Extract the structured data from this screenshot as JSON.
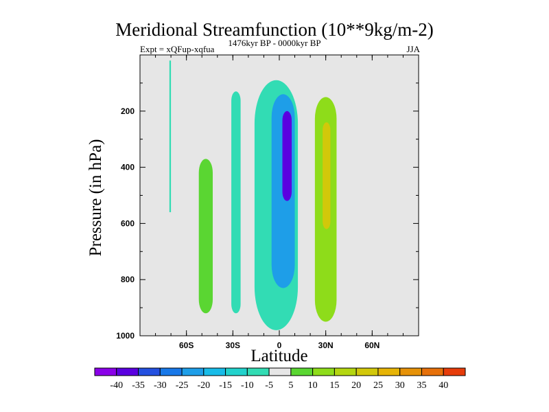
{
  "chart_data": {
    "type": "filled-contour",
    "title": "Meridional Streamfunction (10**9kg/m-2)",
    "subtitle": "1476kyr BP - 0000kyr BP",
    "left_label": "Expt = xQFup-xqfua",
    "right_label": "JJA",
    "xlabel": "Latitude",
    "ylabel": "Pressure (in hPa)",
    "xlim": [
      -90,
      90
    ],
    "ylim": [
      1000,
      0
    ],
    "x_ticks": [
      {
        "value": -60,
        "label": "60S"
      },
      {
        "value": -30,
        "label": "30S"
      },
      {
        "value": 0,
        "label": "0"
      },
      {
        "value": 30,
        "label": "30N"
      },
      {
        "value": 60,
        "label": "60N"
      }
    ],
    "y_ticks": [
      200,
      400,
      600,
      800,
      1000
    ],
    "colorbar": {
      "levels": [
        "-40",
        "-35",
        "-30",
        "-25",
        "-20",
        "-15",
        "-10",
        "-5",
        "5",
        "10",
        "15",
        "20",
        "25",
        "30",
        "35",
        "40"
      ],
      "colors": [
        "#8a00e8",
        "#5a00e0",
        "#2450e0",
        "#1878e8",
        "#1e9ee8",
        "#18bce8",
        "#22d2cc",
        "#32dcb4",
        "#e6e6e6",
        "#5ad632",
        "#8edc1a",
        "#b4d610",
        "#d2c80a",
        "#e6b406",
        "#e69208",
        "#e6700a",
        "#e63c0a"
      ]
    },
    "background_color": "#e6e6e6",
    "features": [
      {
        "name": "thin-positive-filament-60S",
        "value": -7,
        "lat_range": [
          -71,
          -70
        ],
        "p_range": [
          20,
          560
        ]
      },
      {
        "name": "southern-green-cell",
        "value": 7,
        "lat_range": [
          -52,
          -43
        ],
        "p_range": [
          370,
          920
        ]
      },
      {
        "name": "cyan-cell-30S",
        "value": -7,
        "lat_range": [
          -31,
          -25
        ],
        "p_range": [
          130,
          920
        ]
      },
      {
        "name": "cyan-envelope-equator",
        "value": -7,
        "lat_range": [
          -16,
          12
        ],
        "p_range": [
          90,
          980
        ]
      },
      {
        "name": "blue-core-equator",
        "value": -22,
        "lat_range": [
          -5,
          10
        ],
        "p_range": [
          140,
          830
        ]
      },
      {
        "name": "minimum-core",
        "value": -38,
        "lat_range": [
          2,
          8
        ],
        "p_range": [
          200,
          520
        ]
      },
      {
        "name": "northern-green-cell",
        "value": 12,
        "lat_range": [
          23,
          37
        ],
        "p_range": [
          150,
          950
        ]
      },
      {
        "name": "maximum-core",
        "value": 22,
        "lat_range": [
          28,
          33
        ],
        "p_range": [
          240,
          620
        ]
      }
    ]
  }
}
